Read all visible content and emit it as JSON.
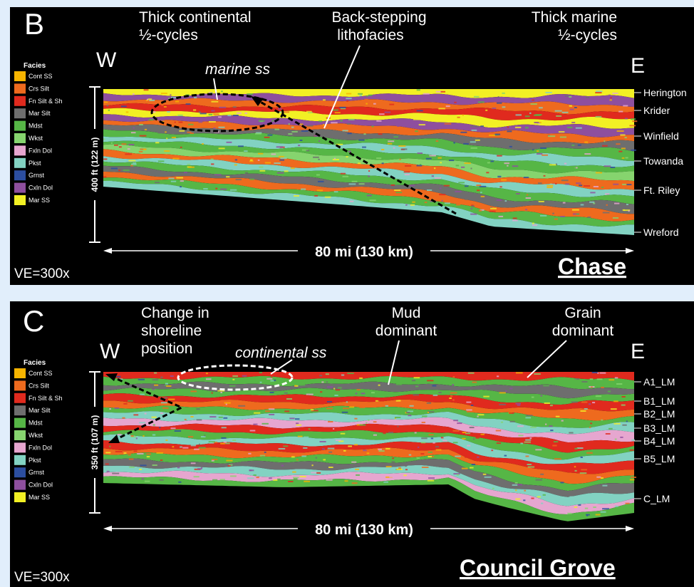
{
  "panels": [
    {
      "label": "B",
      "west": "W",
      "east": "E",
      "annotations": [
        [
          "Thick continental",
          "½-cycles"
        ],
        [
          "Back-stepping",
          "lithofacies"
        ],
        [
          "Thick marine",
          "½-cycles"
        ],
        [
          "marine ss"
        ]
      ],
      "legend": {
        "title": "Facies",
        "items": [
          "Cont SS",
          "Crs Silt",
          "Fn Silt & Sh",
          "Mar Silt",
          "Mdst",
          "Wkst",
          "Fxln Dol",
          "Pkst",
          "Grnst",
          "Cxln Dol",
          "Mar SS"
        ]
      },
      "formations": [
        "Herington",
        "Krider",
        "Winfield",
        "Towanda",
        "Ft. Riley",
        "Wreford"
      ],
      "vertical_scale": "400 ft (122 m)",
      "distance": "80 mi (130 km)",
      "exaggeration": "VE=300x",
      "name": "Chase"
    },
    {
      "label": "C",
      "west": "W",
      "east": "E",
      "annotations": [
        [
          "Change in",
          "shoreline",
          "position"
        ],
        [
          "Mud",
          "dominant"
        ],
        [
          "Grain",
          "dominant"
        ],
        [
          "continental ss"
        ]
      ],
      "legend": {
        "title": "Facies",
        "items": [
          "Cont SS",
          "Crs Silt",
          "Fn Silt & Sh",
          "Mar Silt",
          "Mdst",
          "Wkst",
          "Fxln Dol",
          "Pkst",
          "Grnst",
          "Cxln Dol",
          "Mar SS"
        ]
      },
      "formations": [
        "A1_LM",
        "B1_LM",
        "B2_LM",
        "B3_LM",
        "B4_LM",
        "B5_LM",
        "C_LM"
      ],
      "vertical_scale": "350 ft (107 m)",
      "distance": "80 mi (130 km)",
      "exaggeration": "VE=300x",
      "name": "Council Grove"
    }
  ]
}
